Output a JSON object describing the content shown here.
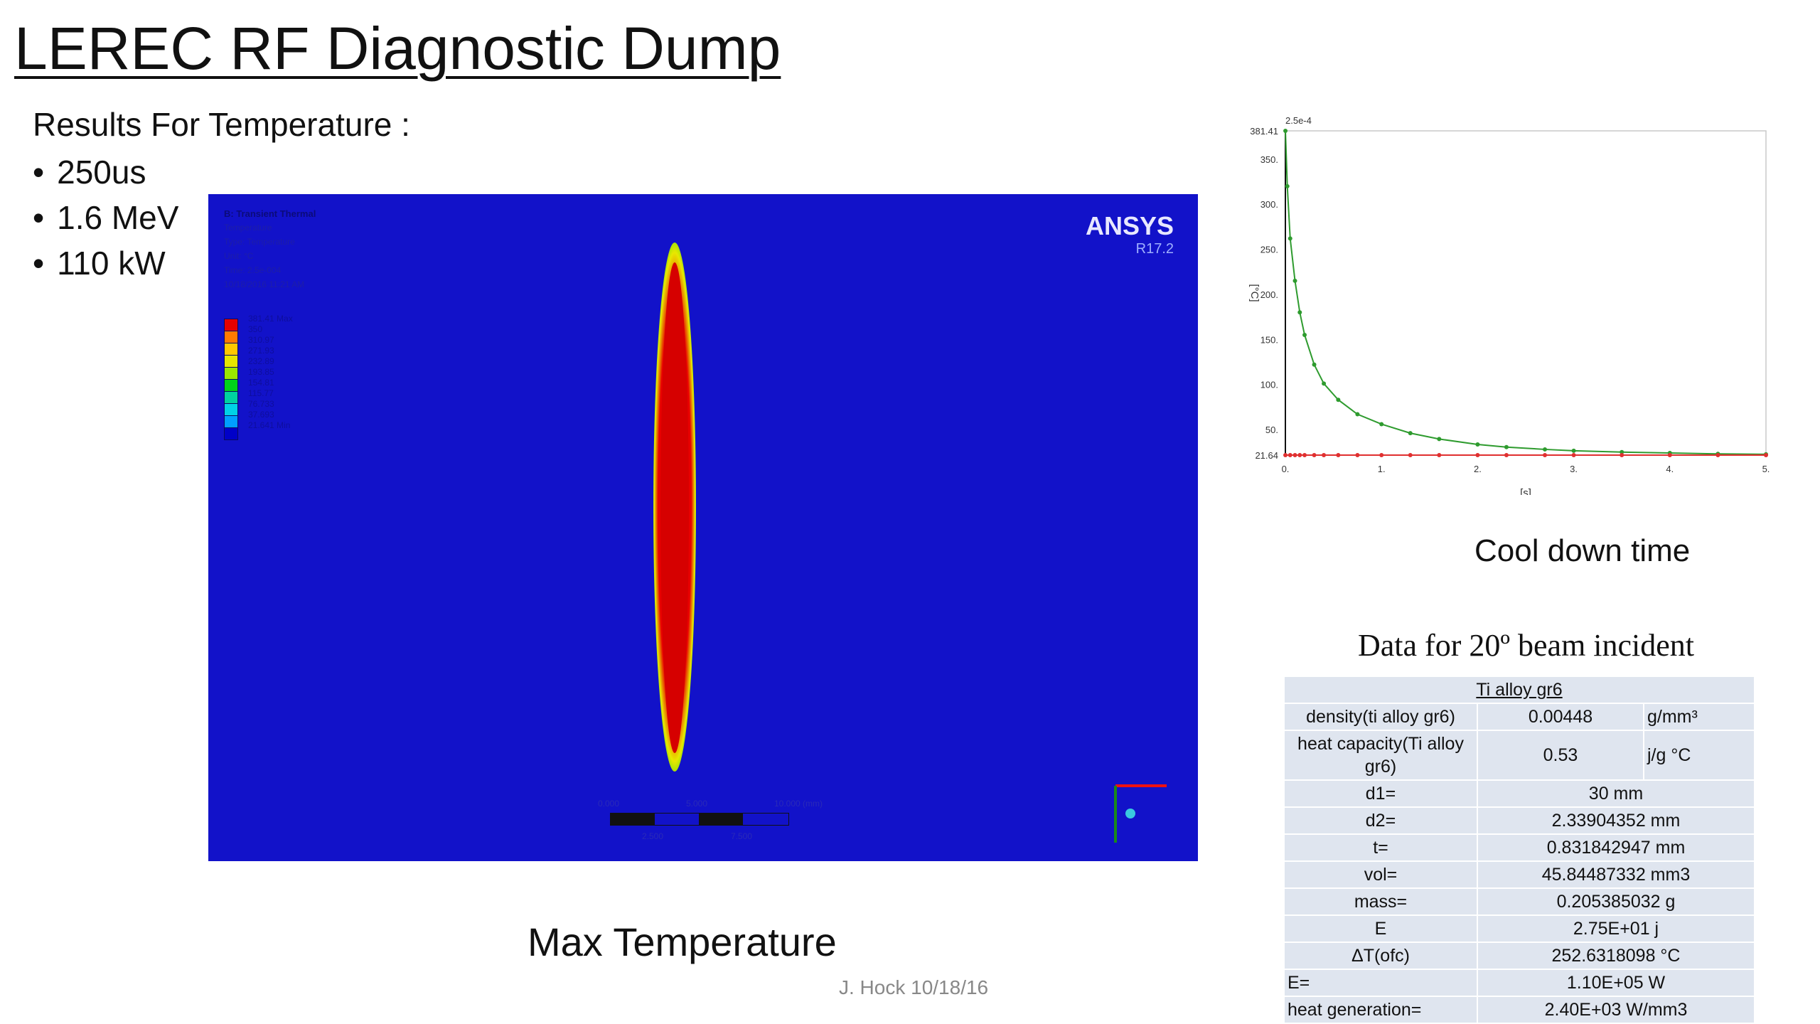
{
  "title": "LEREC RF Diagnostic Dump",
  "results_heading": "Results For  Temperature :",
  "bullets": [
    "250us",
    "1.6 MeV",
    "110 kW"
  ],
  "simulation": {
    "header": "B: Transient Thermal",
    "subheader": [
      "Temperature",
      "Type: Temperature",
      "Unit: °C",
      "Time: 2.5e-004",
      "10/18/2016 11:21 AM"
    ],
    "legend": [
      "381.41 Max",
      "350",
      "310.97",
      "271.93",
      "232.89",
      "193.85",
      "154.81",
      "115.77",
      "76.733",
      "37.693",
      "21.641 Min"
    ],
    "legend_colors": [
      "#e60000",
      "#ff7a00",
      "#ffc800",
      "#e6e600",
      "#9ae600",
      "#00d21a",
      "#00d2a0",
      "#00d2e6",
      "#00a0ff",
      "#0000c8"
    ],
    "brand": "ANSYS",
    "version": "R17.2",
    "scale_labels": [
      "0.000",
      "5.000",
      "10.000 (mm)",
      "2.500",
      "7.500"
    ],
    "colors": {
      "background": "#1212c9",
      "hot": "#e80000"
    }
  },
  "caption_max": "Max Temperature",
  "credit": "J. Hock 10/18/16",
  "chart_data": {
    "type": "line",
    "top_label": "2.5e-4",
    "xlabel": "[s]",
    "ylabel": "[°C]",
    "x_ticks": [
      "0.",
      "1.",
      "2.",
      "3.",
      "4.",
      "5."
    ],
    "y_ticks": [
      "21.64",
      "50.",
      "100.",
      "150.",
      "200.",
      "250.",
      "300.",
      "350.",
      "381.41"
    ],
    "xlim": [
      0,
      5
    ],
    "ylim": [
      21.64,
      381.41
    ],
    "series": [
      {
        "color": "#2e9b2e",
        "x": [
          0.00025,
          0.02,
          0.05,
          0.1,
          0.15,
          0.2,
          0.3,
          0.4,
          0.55,
          0.75,
          1.0,
          1.3,
          1.6,
          2.0,
          2.3,
          2.7,
          3.0,
          3.5,
          4.0,
          4.5,
          5.0
        ],
        "values": [
          381.41,
          320,
          262,
          215,
          180,
          155,
          122,
          101,
          83,
          67,
          56,
          46,
          39.5,
          33.5,
          30.5,
          28,
          26.5,
          25,
          24,
          23,
          22.5
        ]
      },
      {
        "color": "#e03030",
        "x": [
          0.00025,
          0.05,
          0.1,
          0.15,
          0.2,
          0.3,
          0.4,
          0.55,
          0.75,
          1.0,
          1.3,
          1.6,
          2.0,
          2.3,
          2.7,
          3.0,
          3.5,
          4.0,
          4.5,
          5.0
        ],
        "values": [
          21.64,
          21.64,
          21.64,
          21.64,
          21.64,
          21.64,
          21.64,
          21.64,
          21.64,
          21.64,
          21.64,
          21.64,
          21.64,
          21.64,
          21.64,
          21.64,
          21.64,
          21.64,
          21.64,
          21.64
        ]
      }
    ]
  },
  "caption_cool": "Cool down time",
  "table": {
    "title": "Data for 20º beam incident",
    "header": "Ti alloy gr6",
    "rows": [
      {
        "label": "density(ti alloy gr6)",
        "value": "0.00448",
        "unit": "g/mm³"
      },
      {
        "label": "heat capacity(Ti alloy gr6)",
        "value": "0.53",
        "unit": "j/g °C"
      },
      {
        "label": "d1=",
        "value": "30 mm"
      },
      {
        "label": "d2=",
        "value": "2.33904352 mm"
      },
      {
        "label": "t=",
        "value": "0.831842947 mm"
      },
      {
        "label": "vol=",
        "value": "45.84487332 mm3"
      },
      {
        "label": "mass=",
        "value": "0.205385032 g"
      },
      {
        "label": "E",
        "value": "2.75E+01 j"
      },
      {
        "label": "ΔT(ofc)",
        "value": "252.6318098 °C"
      },
      {
        "label": "E=",
        "value": "1.10E+05 W",
        "left": true
      },
      {
        "label": "heat generation=",
        "value": "2.40E+03 W/mm3",
        "left": true
      }
    ]
  }
}
